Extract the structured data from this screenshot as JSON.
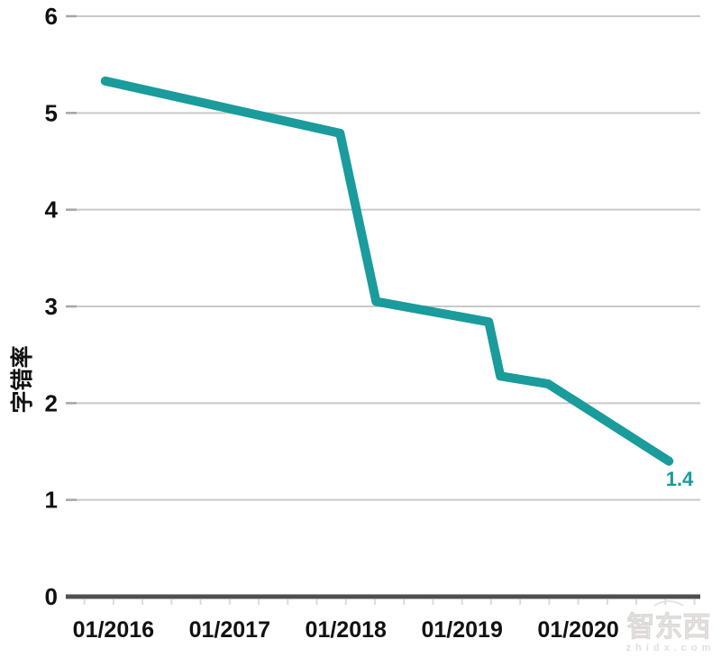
{
  "chart_data": {
    "type": "line",
    "title": "",
    "xlabel": "",
    "ylabel": "字错率",
    "xlim": [
      2015.59,
      2021.05
    ],
    "ylim": [
      0,
      6
    ],
    "grid": "horizontal",
    "legend_position": "none",
    "y_ticks": [
      {
        "value": 0,
        "label": "0"
      },
      {
        "value": 1,
        "label": "1"
      },
      {
        "value": 2,
        "label": "2"
      },
      {
        "value": 3,
        "label": "3"
      },
      {
        "value": 4,
        "label": "4"
      },
      {
        "value": 5,
        "label": "5"
      },
      {
        "value": 6,
        "label": "6"
      }
    ],
    "x_ticks": [
      {
        "value": 2016,
        "label": "01/2016"
      },
      {
        "value": 2017,
        "label": "01/2017"
      },
      {
        "value": 2018,
        "label": "01/2018"
      },
      {
        "value": 2019,
        "label": "01/2019"
      },
      {
        "value": 2020,
        "label": "01/2020"
      }
    ],
    "minor_x_tick_step": 0.25,
    "series": [
      {
        "name": "字错率",
        "color": "#1a9b9c",
        "line_width": 10,
        "end_label": "1.4",
        "points": [
          {
            "date": "12/2015",
            "x": 2015.93,
            "y": 5.33
          },
          {
            "date": "12/2017",
            "x": 2017.95,
            "y": 4.79
          },
          {
            "date": "04/2018",
            "x": 2018.26,
            "y": 3.05
          },
          {
            "date": "03/2019",
            "x": 2019.23,
            "y": 2.84
          },
          {
            "date": "05/2019",
            "x": 2019.33,
            "y": 2.28
          },
          {
            "date": "10/2019",
            "x": 2019.74,
            "y": 2.2
          },
          {
            "date": "10/2020",
            "x": 2020.78,
            "y": 1.4
          }
        ]
      }
    ]
  },
  "watermark": {
    "brand": "智东西",
    "domain": "zhidx.com"
  },
  "colors": {
    "line": "#1a9b9c",
    "grid": "#c9c9c9",
    "grid_nub": "#a6a6a6",
    "axis": "#4f4f4f",
    "minor_tick": "#dbdbdb",
    "tick_label": "#111111",
    "background": "#ffffff"
  }
}
